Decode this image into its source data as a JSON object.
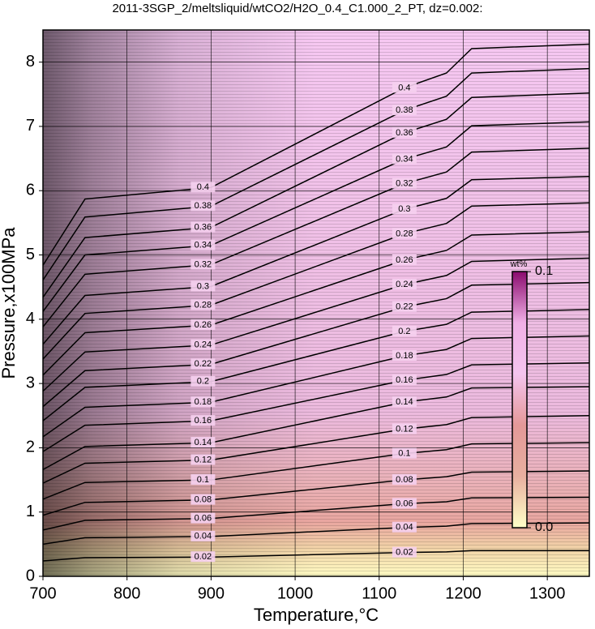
{
  "chart_data": {
    "type": "contour",
    "title": "2011-3SGP_2/meltsliquid/wtCO2/H2O_0.4_C1.000_2_PT, dz=0.002:",
    "xlabel": "Temperature,°C",
    "ylabel": "Pressure,x100MPa",
    "xlim": [
      700,
      1350
    ],
    "ylim": [
      0,
      8.5
    ],
    "xticks": [
      700,
      800,
      900,
      1000,
      1100,
      1200,
      1300
    ],
    "yticks": [
      0,
      1,
      2,
      3,
      4,
      5,
      6,
      7,
      8
    ],
    "grid": true,
    "line_color": "#000000",
    "x": [
      700,
      750,
      900,
      1130,
      1180,
      1210,
      1350
    ],
    "contours": [
      {
        "level": 0.02,
        "values": [
          0.24,
          0.29,
          0.3,
          0.37,
          0.38,
          0.4,
          0.4
        ]
      },
      {
        "level": 0.04,
        "values": [
          0.5,
          0.6,
          0.62,
          0.76,
          0.78,
          0.82,
          0.83
        ]
      },
      {
        "level": 0.06,
        "values": [
          0.72,
          0.87,
          0.9,
          1.13,
          1.16,
          1.22,
          1.23
        ]
      },
      {
        "level": 0.08,
        "values": [
          0.95,
          1.15,
          1.19,
          1.5,
          1.55,
          1.62,
          1.64
        ]
      },
      {
        "level": 0.1,
        "values": [
          1.2,
          1.46,
          1.5,
          1.91,
          1.97,
          2.06,
          2.08
        ]
      },
      {
        "level": 0.12,
        "values": [
          1.45,
          1.76,
          1.81,
          2.29,
          2.36,
          2.47,
          2.5
        ]
      },
      {
        "level": 0.14,
        "values": [
          1.66,
          2.02,
          2.08,
          2.71,
          2.79,
          2.93,
          2.95
        ]
      },
      {
        "level": 0.16,
        "values": [
          1.94,
          2.35,
          2.42,
          3.05,
          3.14,
          3.29,
          3.32
        ]
      },
      {
        "level": 0.18,
        "values": [
          2.17,
          2.63,
          2.71,
          3.43,
          3.53,
          3.7,
          3.74
        ]
      },
      {
        "level": 0.2,
        "values": [
          2.42,
          2.94,
          3.03,
          3.81,
          3.92,
          4.11,
          4.15
        ]
      },
      {
        "level": 0.22,
        "values": [
          2.64,
          3.2,
          3.3,
          4.19,
          4.32,
          4.53,
          4.57
        ]
      },
      {
        "level": 0.24,
        "values": [
          2.88,
          3.49,
          3.6,
          4.54,
          4.68,
          4.9,
          4.95
        ]
      },
      {
        "level": 0.26,
        "values": [
          3.13,
          3.79,
          3.91,
          4.92,
          5.07,
          5.31,
          5.36
        ]
      },
      {
        "level": 0.28,
        "values": [
          3.38,
          4.09,
          4.22,
          5.33,
          5.49,
          5.76,
          5.81
        ]
      },
      {
        "level": 0.3,
        "values": [
          3.61,
          4.37,
          4.51,
          5.71,
          5.88,
          6.17,
          6.22
        ]
      },
      {
        "level": 0.32,
        "values": [
          3.88,
          4.7,
          4.85,
          6.11,
          6.29,
          6.6,
          6.66
        ]
      },
      {
        "level": 0.34,
        "values": [
          4.12,
          5.0,
          5.15,
          6.49,
          6.68,
          7.01,
          7.07
        ]
      },
      {
        "level": 0.36,
        "values": [
          4.34,
          5.27,
          5.43,
          6.9,
          7.11,
          7.45,
          7.52
        ]
      },
      {
        "level": 0.38,
        "values": [
          4.61,
          5.59,
          5.76,
          7.25,
          7.47,
          7.83,
          7.9
        ]
      },
      {
        "level": 0.4,
        "values": [
          4.84,
          5.87,
          6.05,
          7.6,
          7.83,
          8.21,
          8.28
        ]
      }
    ],
    "colorbar": {
      "label": "wt%",
      "ticks": [
        {
          "value": 0,
          "label": "0.0"
        },
        0.1
      ],
      "colors": [
        "#ffffc8",
        "#e8b0a0",
        "#e49898",
        "#f4c4ee",
        "#f0b0e6",
        "#8a0a6e"
      ]
    }
  }
}
